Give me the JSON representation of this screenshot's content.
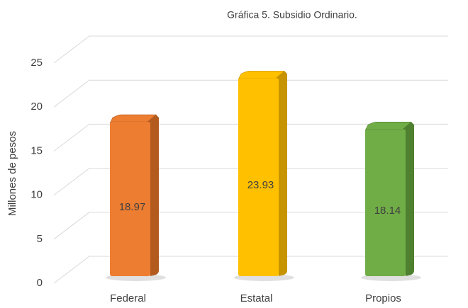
{
  "chart_data": {
    "type": "bar3d",
    "title": "Gráfica 5. Subsidio Ordinario.",
    "ylabel": "Millones  de pesos",
    "categories": [
      "Federal",
      "Estatal",
      "Propios"
    ],
    "values": [
      18.97,
      23.93,
      18.14
    ],
    "colors": [
      "#ED7D31",
      "#FFC000",
      "#70AD47"
    ],
    "side_colors": [
      "#B35A1F",
      "#C79400",
      "#4E8030"
    ],
    "ylim": [
      0,
      25
    ],
    "yticks": [
      0,
      5,
      10,
      15,
      20,
      25
    ],
    "grid": true
  }
}
